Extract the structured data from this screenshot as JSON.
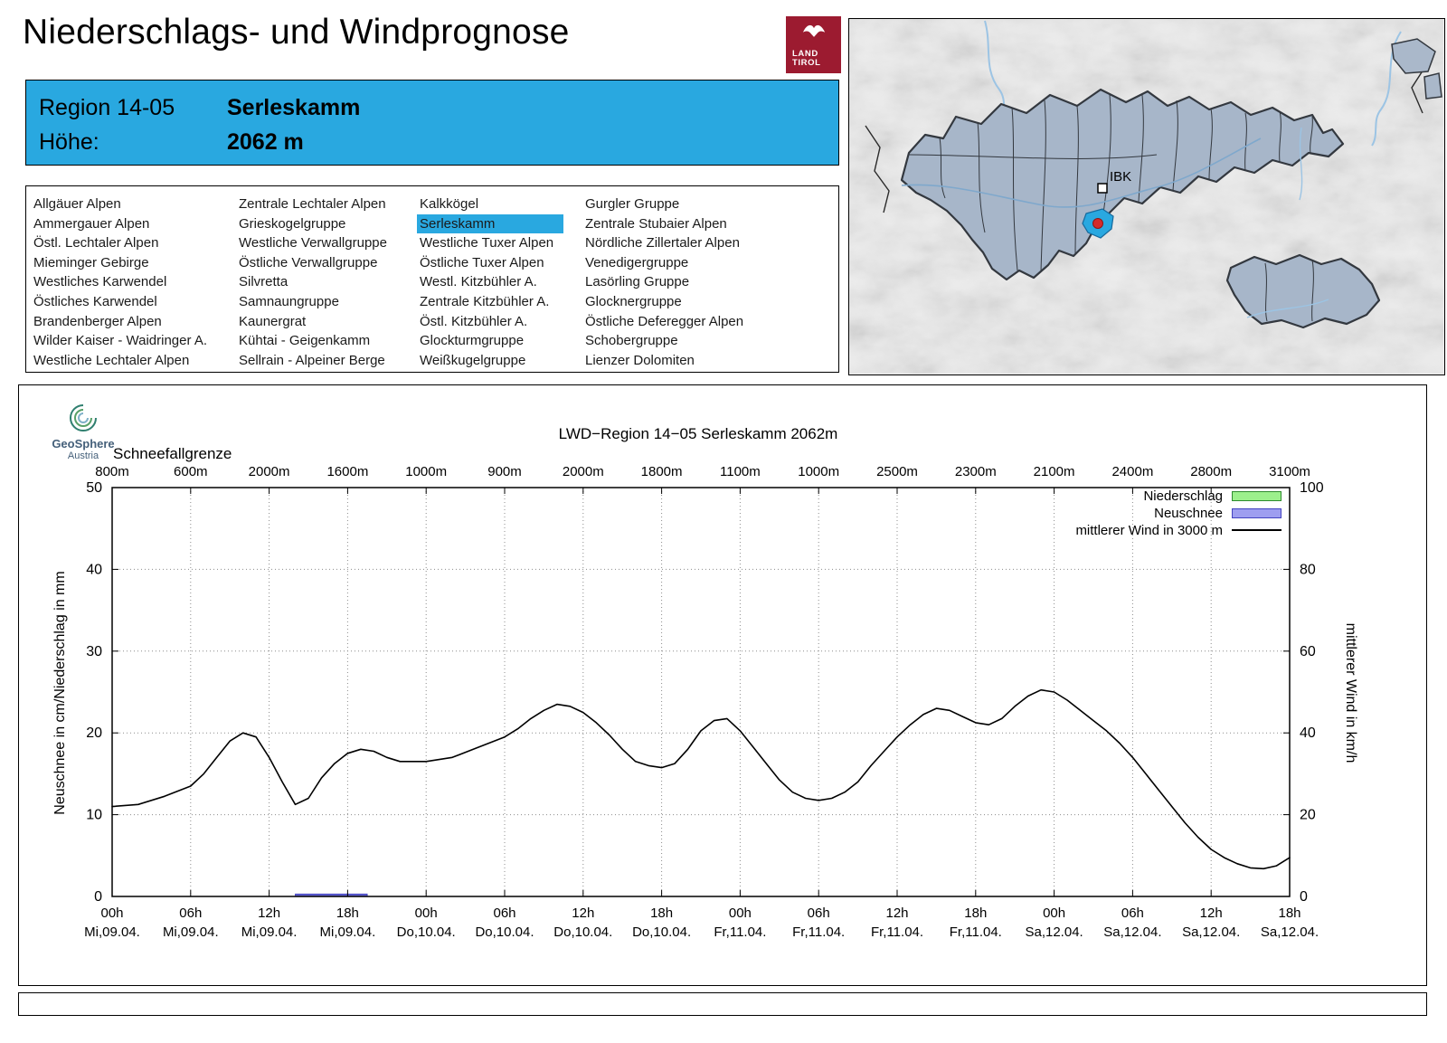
{
  "page": {
    "title": "Niederschlags- und Windprognose"
  },
  "logo": {
    "line1": "LAND",
    "line2": "TIROL"
  },
  "region_box": {
    "region_label": "Region 14-05",
    "region_name": "Serleskamm",
    "altitude_label": "Höhe:",
    "altitude_value": "2062 m"
  },
  "region_list": {
    "selected": "Serleskamm",
    "columns": [
      [
        "Allgäuer Alpen",
        "Ammergauer Alpen",
        "Östl. Lechtaler Alpen",
        "Mieminger Gebirge",
        "Westliches Karwendel",
        "Östliches Karwendel",
        "Brandenberger Alpen",
        "Wilder Kaiser - Waidringer A.",
        "Westliche Lechtaler Alpen"
      ],
      [
        "Zentrale Lechtaler Alpen",
        "Grieskogelgruppe",
        "Westliche Verwallgruppe",
        "Östliche Verwallgruppe",
        "Silvretta",
        "Samnaungruppe",
        "Kaunergrat",
        "Kühtai - Geigenkamm",
        "Sellrain - Alpeiner Berge"
      ],
      [
        "Kalkkögel",
        "Serleskamm",
        "Westliche Tuxer Alpen",
        "Östliche Tuxer Alpen",
        "Westl. Kitzbühler A.",
        "Zentrale Kitzbühler A.",
        "Östl. Kitzbühler A.",
        "Glockturmgruppe",
        "Weißkugelgruppe"
      ],
      [
        "Gurgler Gruppe",
        "Zentrale Stubaier Alpen",
        "Nördliche Zillertaler Alpen",
        "Venedigergruppe",
        "Lasörling Gruppe",
        "Glocknergruppe",
        "Östliche Deferegger Alpen",
        "Schobergruppe",
        "Lienzer Dolomiten"
      ]
    ]
  },
  "map": {
    "city_label": "IBK",
    "highlight_color": "#29a8e0",
    "marker_color": "#d52b2b"
  },
  "chart": {
    "brand_name": "GeoSphere",
    "brand_sub": "Austria",
    "legend": [
      {
        "label": "Niederschlag",
        "fill": "#9cf08c",
        "border": "#2e8b2e"
      },
      {
        "label": "Neuschnee",
        "fill": "#9e9ef0",
        "border": "#4343c0"
      },
      {
        "label": "mittlerer Wind in 3000 m",
        "color": "#000000"
      }
    ]
  },
  "chart_data": {
    "type": "line",
    "title": "LWD−Region 14−05 Serleskamm 2062m",
    "x_unit": "hours from Mi 09.04. 00h",
    "x_range": [
      0,
      90
    ],
    "x_tick_step": 6,
    "x_tick_hours": [
      "00h",
      "06h",
      "12h",
      "18h",
      "00h",
      "06h",
      "12h",
      "18h",
      "00h",
      "06h",
      "12h",
      "18h",
      "00h",
      "06h",
      "12h",
      "18h"
    ],
    "x_tick_days": [
      "Mi,09.04.",
      "Mi,09.04.",
      "Mi,09.04.",
      "Mi,09.04.",
      "Do,10.04.",
      "Do,10.04.",
      "Do,10.04.",
      "Do,10.04.",
      "Fr,11.04.",
      "Fr,11.04.",
      "Fr,11.04.",
      "Fr,11.04.",
      "Sa,12.04.",
      "Sa,12.04.",
      "Sa,12.04.",
      "Sa,12.04."
    ],
    "y_left": {
      "label": "Neuschnee in cm/Niederschlag in mm",
      "range": [
        0,
        50
      ],
      "ticks": [
        0,
        10,
        20,
        30,
        40,
        50
      ]
    },
    "y_right": {
      "label": "mittlerer Wind in km/h",
      "range": [
        0,
        100
      ],
      "ticks": [
        0,
        20,
        40,
        60,
        80,
        100
      ]
    },
    "grid": true,
    "snowline": {
      "label": "Schneefallgrenze",
      "values": [
        "800m",
        "600m",
        "2000m",
        "1600m",
        "1000m",
        "900m",
        "2000m",
        "1800m",
        "1100m",
        "1000m",
        "2500m",
        "2300m",
        "2100m",
        "2400m",
        "2800m",
        "3100m"
      ]
    },
    "series": [
      {
        "name": "Niederschlag",
        "type": "bar",
        "axis": "left",
        "unit": "mm",
        "values": []
      },
      {
        "name": "Neuschnee",
        "type": "bar",
        "axis": "left",
        "unit": "cm",
        "segments": [
          {
            "from": 14,
            "to": 19.5,
            "value": 0.3
          }
        ]
      },
      {
        "name": "mittlerer Wind in 3000 m",
        "type": "line",
        "axis": "right",
        "unit": "km/h",
        "color": "#000000",
        "t": [
          0,
          2,
          4,
          6,
          7,
          8,
          9,
          10,
          11,
          12,
          13,
          14,
          15,
          16,
          17,
          18,
          19,
          20,
          21,
          22,
          24,
          26,
          28,
          30,
          31,
          32,
          33,
          34,
          35,
          36,
          37,
          38,
          39,
          40,
          41,
          42,
          43,
          44,
          45,
          46,
          47,
          48,
          49,
          50,
          51,
          52,
          53,
          54,
          55,
          56,
          57,
          58,
          59,
          60,
          61,
          62,
          63,
          64,
          65,
          66,
          67,
          68,
          69,
          70,
          71,
          72,
          73,
          74,
          75,
          76,
          77,
          78,
          79,
          80,
          81,
          82,
          83,
          84,
          85,
          86,
          87,
          88,
          89,
          90
        ],
        "values_kmh": [
          22,
          22.5,
          24.5,
          27,
          30,
          34,
          38,
          40,
          39,
          34,
          28,
          22.5,
          24,
          29,
          32.5,
          35,
          36,
          35.5,
          34,
          33,
          33,
          34,
          36.5,
          39,
          41,
          43.5,
          45.5,
          47,
          46.5,
          45,
          42.5,
          39.5,
          36,
          33,
          32,
          31.5,
          32.5,
          36,
          40.5,
          43,
          43.5,
          40.5,
          36.5,
          32.5,
          28.5,
          25.5,
          24,
          23.5,
          24,
          25.5,
          28,
          32,
          35.5,
          39,
          42,
          44.5,
          46,
          45.5,
          44,
          42.5,
          42,
          43.5,
          46.5,
          49,
          50.5,
          50,
          48,
          45.5,
          43,
          40.5,
          37.5,
          34,
          30,
          26,
          22,
          18,
          14.5,
          11.5,
          9.5,
          8,
          7,
          6.8,
          7.5,
          9.5
        ]
      }
    ]
  }
}
